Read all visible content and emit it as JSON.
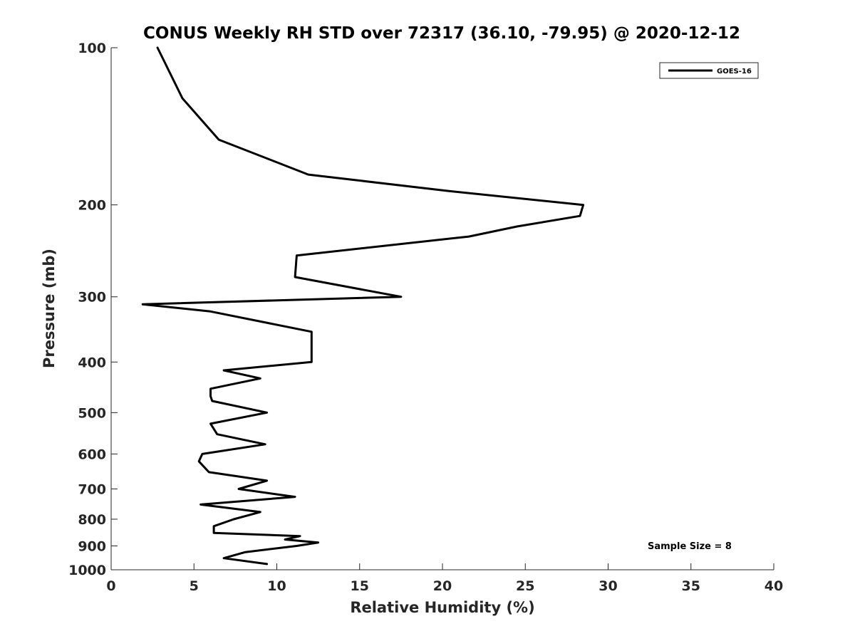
{
  "chart_data": {
    "type": "line",
    "title": "CONUS Weekly RH STD over 72317 (36.10, -79.95) @ 2020-12-12",
    "xlabel": "Relative Humidity (%)",
    "ylabel": "Pressure (mb)",
    "xlim": [
      0,
      40
    ],
    "ylim": [
      100,
      1000
    ],
    "y_scale": "log",
    "y_reversed": true,
    "x_ticks": [
      "0",
      "5",
      "10",
      "15",
      "20",
      "25",
      "30",
      "35",
      "40"
    ],
    "y_ticks": [
      "100",
      "200",
      "300",
      "400",
      "500",
      "600",
      "700",
      "800",
      "900",
      "1000"
    ],
    "grid": false,
    "legend_position": "top-right",
    "annotation": "Sample Size = 8",
    "series": [
      {
        "name": "GOES-16",
        "color": "#000000",
        "points": [
          [
            2.8,
            100
          ],
          [
            4.3,
            125
          ],
          [
            6.5,
            150
          ],
          [
            11.9,
            175
          ],
          [
            20.3,
            188
          ],
          [
            28.5,
            200
          ],
          [
            28.3,
            210
          ],
          [
            24.5,
            220
          ],
          [
            21.6,
            230
          ],
          [
            11.2,
            250
          ],
          [
            11.1,
            275
          ],
          [
            17.5,
            300
          ],
          [
            1.9,
            310
          ],
          [
            6.0,
            320
          ],
          [
            12.1,
            350
          ],
          [
            12.1,
            400
          ],
          [
            6.8,
            415
          ],
          [
            9.0,
            430
          ],
          [
            6.0,
            450
          ],
          [
            6.0,
            465
          ],
          [
            6.1,
            475
          ],
          [
            9.4,
            500
          ],
          [
            6.0,
            525
          ],
          [
            6.4,
            550
          ],
          [
            9.3,
            575
          ],
          [
            5.5,
            600
          ],
          [
            5.3,
            620
          ],
          [
            5.9,
            650
          ],
          [
            9.4,
            675
          ],
          [
            7.7,
            700
          ],
          [
            11.1,
            725
          ],
          [
            5.4,
            750
          ],
          [
            9.0,
            775
          ],
          [
            7.4,
            800
          ],
          [
            6.2,
            825
          ],
          [
            6.2,
            850
          ],
          [
            11.4,
            862
          ],
          [
            10.5,
            875
          ],
          [
            12.5,
            887
          ],
          [
            11.2,
            900
          ],
          [
            8.1,
            925
          ],
          [
            6.8,
            950
          ],
          [
            9.4,
            975
          ]
        ]
      }
    ]
  }
}
